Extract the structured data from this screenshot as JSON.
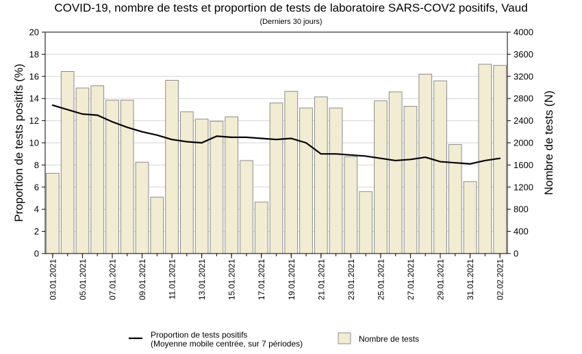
{
  "chart_data": {
    "type": "bar+line",
    "title": "COVID-19, nombre de tests et proportion de tests de laboratoire SARS-COV2 positifs, Vaud",
    "subtitle": "(Derniers 30 jours)",
    "ylabel_left": "Proportion de tests positifs (%)",
    "ylabel_right": "Nombre de tests (N)",
    "ylim_left": [
      0,
      20
    ],
    "ylim_right": [
      0,
      4000
    ],
    "yticks_left": [
      "0",
      "2",
      "4",
      "6",
      "8",
      "10",
      "12",
      "14",
      "16",
      "18",
      "20"
    ],
    "yticks_right": [
      "0",
      "400",
      "800",
      "1200",
      "1600",
      "2000",
      "2400",
      "2800",
      "3200",
      "3600",
      "4000"
    ],
    "grid": "horizontal",
    "x_tick_labels": [
      "03.01.2021",
      "05.01.2021",
      "07.01.2021",
      "09.01.2021",
      "11.01.2021",
      "13.01.2021",
      "15.01.2021",
      "17.01.2021",
      "19.01.2021",
      "21.01.2021",
      "23.01.2021",
      "25.01.2021",
      "27.01.2021",
      "29.01.2021",
      "31.01.2021",
      "02.02.2021"
    ],
    "dates": [
      "03.01.2021",
      "04.01.2021",
      "05.01.2021",
      "06.01.2021",
      "07.01.2021",
      "08.01.2021",
      "09.01.2021",
      "10.01.2021",
      "11.01.2021",
      "12.01.2021",
      "13.01.2021",
      "14.01.2021",
      "15.01.2021",
      "16.01.2021",
      "17.01.2021",
      "18.01.2021",
      "19.01.2021",
      "20.01.2021",
      "21.01.2021",
      "22.01.2021",
      "23.01.2021",
      "24.01.2021",
      "25.01.2021",
      "26.01.2021",
      "27.01.2021",
      "28.01.2021",
      "29.01.2021",
      "30.01.2021",
      "31.01.2021",
      "01.02.2021",
      "02.02.2021"
    ],
    "series": [
      {
        "name": "Nombre de tests",
        "type": "bar",
        "axis": "right",
        "color": "#f1ecd2",
        "stroke": "#8c8c8c",
        "values": [
          1450,
          3290,
          2990,
          3030,
          2770,
          2770,
          1650,
          1020,
          3130,
          2560,
          2430,
          2390,
          2470,
          1680,
          930,
          2720,
          2930,
          2630,
          2830,
          2630,
          1750,
          1120,
          2760,
          2920,
          2660,
          3240,
          3120,
          1970,
          1300,
          3420,
          3400
        ]
      },
      {
        "name": "Proportion de tests positifs",
        "type": "line",
        "axis": "left",
        "color": "#000000",
        "values": [
          13.4,
          13.0,
          12.6,
          12.5,
          11.9,
          11.4,
          11.0,
          10.7,
          10.3,
          10.1,
          10.0,
          10.6,
          10.5,
          10.5,
          10.4,
          10.3,
          10.4,
          10.0,
          9.0,
          9.0,
          8.9,
          8.8,
          8.6,
          8.4,
          8.5,
          8.7,
          8.3,
          8.2,
          8.1,
          8.4,
          8.6
        ]
      }
    ],
    "legend": {
      "placement": "bottom",
      "line_label_1": "Proportion de tests positifs",
      "line_label_2": "(Moyenne mobile centrée, sur 7 périodes)",
      "bar_label": "Nombre de tests"
    }
  }
}
